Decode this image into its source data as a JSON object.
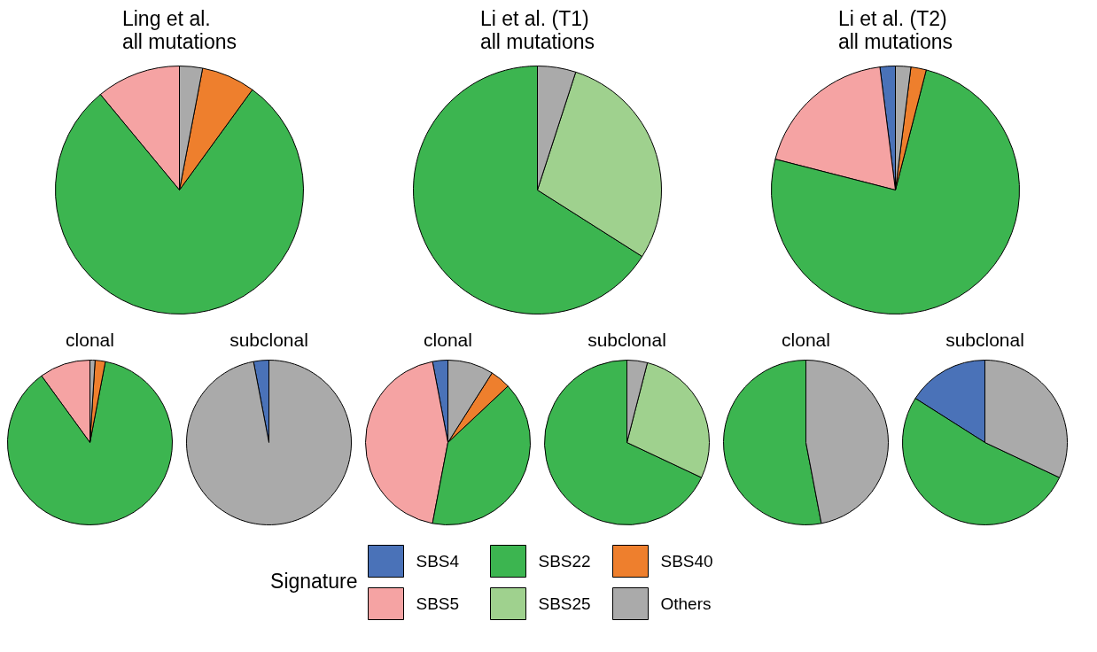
{
  "chart_data": [
    {
      "type": "pie",
      "title": "Ling et al.\nall mutations",
      "categories": [
        "SBS4",
        "SBS5",
        "SBS22",
        "SBS25",
        "SBS40",
        "Others"
      ],
      "values": [
        0,
        11,
        79,
        0,
        7,
        3
      ],
      "colors": [
        "#4a72b8",
        "#f5a3a3",
        "#3cb550",
        "#9fd18e",
        "#ee7f2d",
        "#aaaaaa"
      ],
      "legend": "bottom",
      "legend_title": "Signature"
    },
    {
      "type": "pie",
      "title": "Li et al. (T1)\nall mutations",
      "categories": [
        null,
        null,
        null
      ],
      "values": [
        66,
        29,
        5
      ],
      "colors": [
        "#3cb550",
        "#9fd18e",
        "#aaaaaa"
      ]
    },
    {
      "type": "pie",
      "title": "Li et al. (T2)\nall mutations",
      "categories": [
        null,
        null,
        null,
        null,
        null
      ],
      "values": [
        2,
        19,
        75,
        2,
        2
      ],
      "colors": [
        "#4a72b8",
        "#f5a3a3",
        "#3cb550",
        "#ee7f2d",
        "#aaaaaa"
      ]
    },
    {
      "type": "pie",
      "title": "clonal",
      "categories": [
        null,
        null,
        null,
        null
      ],
      "values": [
        10,
        87,
        2,
        1
      ],
      "colors": [
        "#f5a3a3",
        "#3cb550",
        "#ee7f2d",
        "#aaaaaa"
      ]
    },
    {
      "type": "pie",
      "title": "subclonal",
      "categories": [
        null,
        null
      ],
      "values": [
        3,
        97
      ],
      "colors": [
        "#4a72b8",
        "#aaaaaa"
      ]
    },
    {
      "type": "pie",
      "title": "clonal",
      "categories": [
        null,
        null,
        null,
        null,
        null
      ],
      "values": [
        3,
        44,
        40,
        4,
        9
      ],
      "colors": [
        "#4a72b8",
        "#f5a3a3",
        "#3cb550",
        "#ee7f2d",
        "#aaaaaa"
      ]
    },
    {
      "type": "pie",
      "title": "subclonal",
      "categories": [
        null,
        null,
        null
      ],
      "values": [
        68,
        28,
        4
      ],
      "colors": [
        "#3cb550",
        "#9fd18e",
        "#aaaaaa"
      ]
    },
    {
      "type": "pie",
      "title": "clonal",
      "categories": [
        null,
        null
      ],
      "values": [
        53,
        47
      ],
      "colors": [
        "#3cb550",
        "#aaaaaa"
      ]
    },
    {
      "type": "pie",
      "title": "subclonal",
      "categories": [
        null,
        null,
        null
      ],
      "values": [
        16,
        52,
        32
      ],
      "colors": [
        "#4a72b8",
        "#3cb550",
        "#aaaaaa"
      ]
    }
  ]
}
